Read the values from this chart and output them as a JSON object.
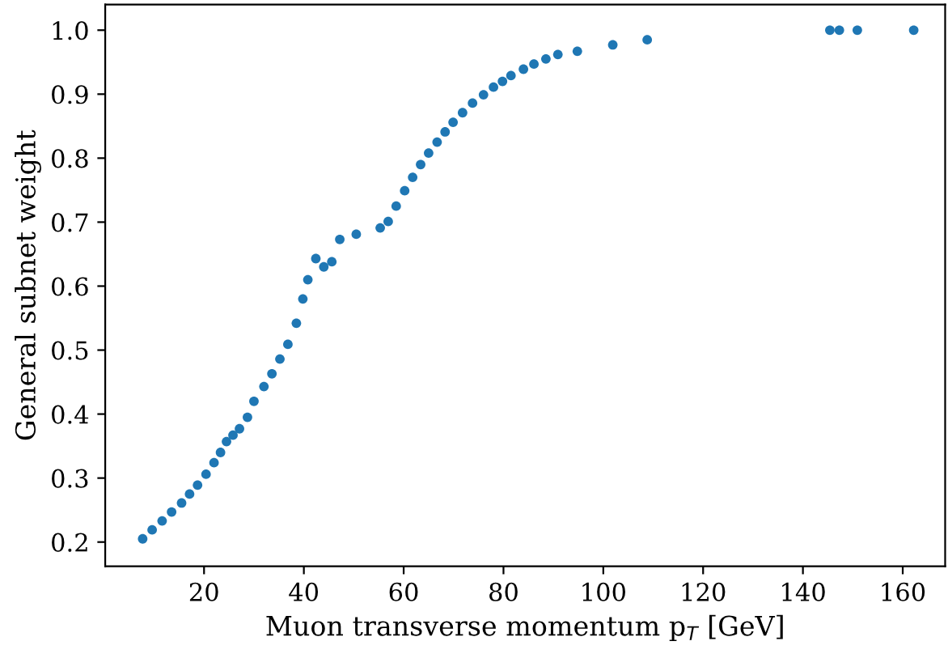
{
  "chart_data": {
    "type": "scatter",
    "xlabel": "Muon transverse momentum p$_{T}$ [GeV]",
    "ylabel": "General subnet weight",
    "xlim": [
      0.2,
      168.5
    ],
    "ylim": [
      0.162,
      1.04
    ],
    "xticks": [
      20,
      40,
      60,
      80,
      100,
      120,
      140,
      160
    ],
    "yticks": [
      0.2,
      0.3,
      0.4,
      0.5,
      0.6,
      0.7,
      0.8,
      0.9,
      {
        "value": 1,
        "label": "1.0"
      }
    ],
    "marker": "circle",
    "grid": false,
    "series": [
      {
        "color": "#1f77b4",
        "x": [
          7.7,
          9.6,
          11.6,
          13.5,
          15.5,
          17.1,
          18.7,
          20.4,
          22.0,
          23.3,
          24.5,
          25.8,
          27.1,
          28.7,
          30.0,
          32.0,
          33.6,
          35.2,
          36.8,
          38.5,
          39.8,
          40.8,
          42.4,
          44.0,
          45.6,
          47.2,
          50.5,
          55.3,
          56.9,
          58.5,
          60.2,
          61.8,
          63.4,
          65.0,
          66.7,
          68.3,
          69.9,
          71.8,
          73.8,
          76.0,
          78.0,
          79.8,
          81.5,
          84.0,
          86.1,
          88.5,
          90.9,
          94.8,
          101.9,
          108.8,
          145.4,
          147.3,
          150.9,
          162.2
        ],
        "values": [
          0.205,
          0.219,
          0.233,
          0.247,
          0.261,
          0.275,
          0.289,
          0.306,
          0.324,
          0.34,
          0.357,
          0.367,
          0.377,
          0.395,
          0.42,
          0.443,
          0.463,
          0.486,
          0.509,
          0.542,
          0.58,
          0.61,
          0.643,
          0.63,
          0.638,
          0.673,
          0.681,
          0.691,
          0.701,
          0.725,
          0.749,
          0.77,
          0.79,
          0.808,
          0.825,
          0.841,
          0.856,
          0.871,
          0.886,
          0.899,
          0.911,
          0.92,
          0.929,
          0.939,
          0.947,
          0.955,
          0.962,
          0.967,
          0.977,
          0.985,
          1.0,
          1.0,
          1.0,
          1.0
        ]
      }
    ]
  }
}
